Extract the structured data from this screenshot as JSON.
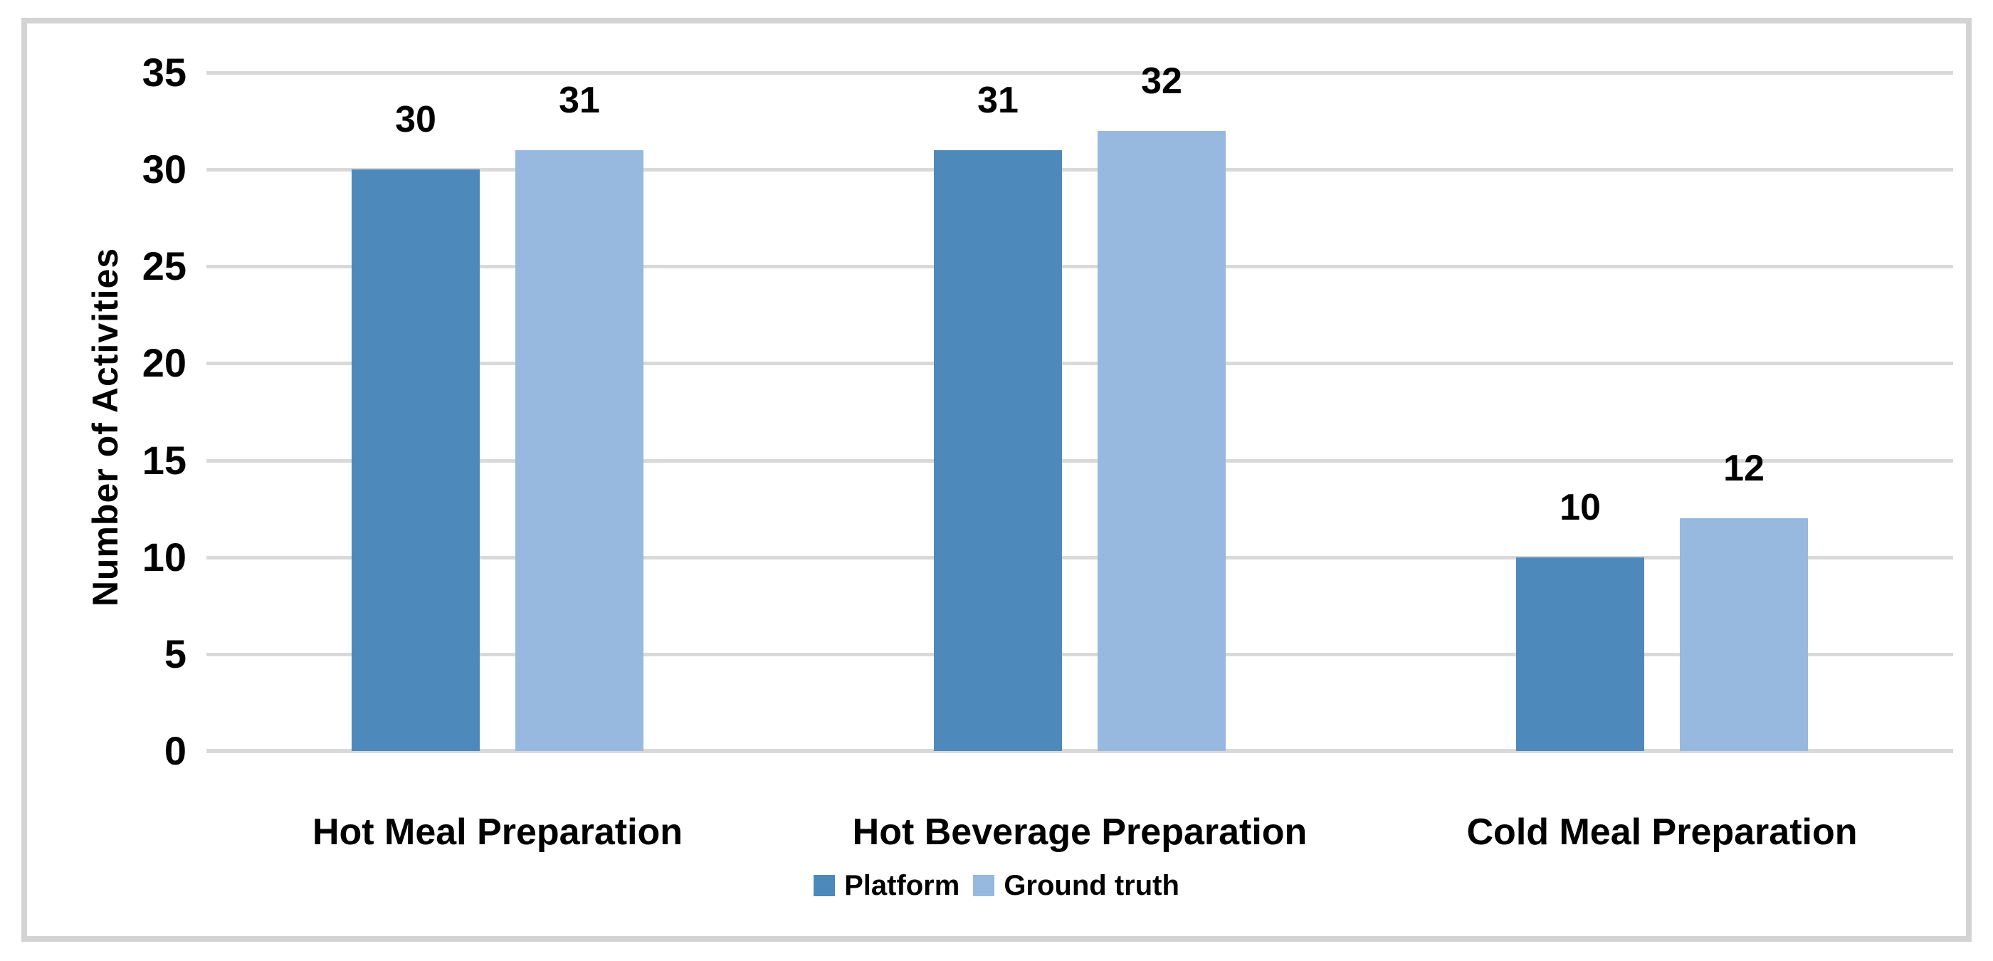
{
  "chart_data": {
    "type": "bar",
    "title": "",
    "categories": [
      "Hot Meal Preparation",
      "Hot Beverage Preparation",
      "Cold Meal Preparation"
    ],
    "series": [
      {
        "name": "Platform",
        "color": "#4E89BC",
        "values": [
          30,
          31,
          10
        ]
      },
      {
        "name": "Ground truth",
        "color": "#97B9DF",
        "values": [
          31,
          32,
          12
        ]
      }
    ],
    "xlabel": "",
    "ylabel": "Number of Activities",
    "ylim": [
      0,
      35
    ],
    "yticks": [
      0,
      5,
      10,
      15,
      20,
      25,
      30,
      35
    ],
    "grid": "horizontal",
    "legend_position": "bottom-center",
    "data_labels": true
  },
  "colors": {
    "gridline": "#D9D9D9",
    "frame_border": "#D3D3D3",
    "background": "#FFFFFF",
    "text": "#000000"
  }
}
